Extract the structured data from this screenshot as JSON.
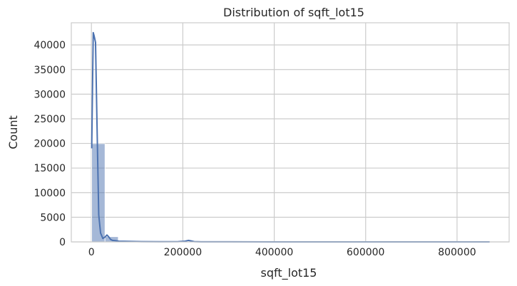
{
  "chart_data": {
    "type": "bar",
    "title": "Distribution of sqft_lot15",
    "xlabel": "sqft_lot15",
    "ylabel": "Count",
    "xlim": [
      -44000,
      914000
    ],
    "ylim": [
      0,
      44500
    ],
    "x_ticks": [
      0,
      200000,
      400000,
      600000,
      800000
    ],
    "x_tick_labels": [
      "0",
      "200000",
      "400000",
      "600000",
      "800000"
    ],
    "y_ticks": [
      0,
      5000,
      10000,
      15000,
      20000,
      25000,
      30000,
      35000,
      40000
    ],
    "y_tick_labels": [
      "0",
      "5000",
      "10000",
      "15000",
      "20000",
      "25000",
      "30000",
      "35000",
      "40000"
    ],
    "grid": true,
    "histogram": {
      "bin_edges": [
        651,
        29671,
        58691,
        87711,
        116731,
        145751,
        174771,
        203791,
        232811,
        261831,
        290851,
        319871,
        348891,
        377911,
        406931,
        435951,
        464971,
        493991,
        523011,
        552031,
        581051,
        610071,
        639091,
        668111,
        697131,
        726151,
        755171,
        784191,
        813211,
        842231,
        871251
      ],
      "counts": [
        19950,
        1050,
        220,
        80,
        40,
        20,
        40,
        60,
        20,
        10,
        8,
        5,
        4,
        3,
        2,
        2,
        1,
        1,
        1,
        1,
        1,
        1,
        1,
        1,
        1,
        1,
        1,
        1,
        1,
        1
      ],
      "color": "#4c72b0",
      "opacity": 0.5
    },
    "kde": {
      "x": [
        651,
        4000,
        6000,
        9000,
        12000,
        16000,
        20000,
        25000,
        30000,
        34000,
        38000,
        42000,
        46000,
        52000,
        60000,
        80000,
        110000,
        150000,
        190000,
        205000,
        212000,
        218000,
        225000,
        240000,
        300000,
        400000,
        500000,
        600000,
        700000,
        800000,
        871251
      ],
      "y": [
        19000,
        42500,
        41800,
        40500,
        25000,
        5500,
        1800,
        700,
        1000,
        1400,
        1000,
        500,
        300,
        250,
        150,
        100,
        50,
        40,
        60,
        150,
        300,
        200,
        60,
        20,
        10,
        5,
        5,
        5,
        5,
        5,
        5
      ],
      "color": "#4c72b0"
    }
  }
}
